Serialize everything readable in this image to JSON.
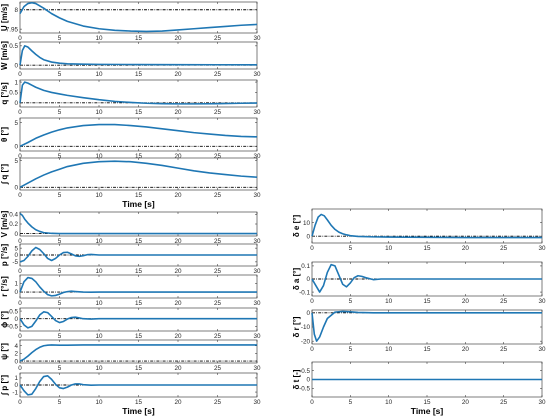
{
  "chart_data": [
    {
      "id": "U",
      "type": "line",
      "ylabel": "U [m/s]",
      "xlim": [
        0,
        30
      ],
      "ylim": [
        7.94,
        8.02
      ],
      "yticks": [
        7.95,
        8
      ],
      "xticks": [
        0,
        5,
        10,
        15,
        20,
        25,
        30
      ],
      "reference": 8.0,
      "series": [
        {
          "color": "#1f77b4",
          "x": [
            0,
            0.5,
            1,
            1.5,
            2,
            3,
            4,
            5,
            6,
            8,
            10,
            12,
            14,
            16,
            18,
            20,
            22,
            24,
            26,
            28,
            30
          ],
          "y": [
            7.99,
            8.008,
            8.016,
            8.018,
            8.016,
            8.004,
            7.99,
            7.979,
            7.97,
            7.958,
            7.951,
            7.947,
            7.945,
            7.944,
            7.945,
            7.948,
            7.951,
            7.954,
            7.957,
            7.96,
            7.962
          ]
        }
      ]
    },
    {
      "id": "W",
      "type": "line",
      "ylabel": "W [m/s]",
      "xlim": [
        0,
        30
      ],
      "ylim": [
        -0.1,
        0.6
      ],
      "yticks": [
        0,
        0.5
      ],
      "xticks": [
        0,
        5,
        10,
        15,
        20,
        25,
        30
      ],
      "reference": 0,
      "series": [
        {
          "color": "#1f77b4",
          "x": [
            0,
            0.3,
            0.6,
            1,
            1.5,
            2,
            2.5,
            3,
            4,
            5,
            6,
            8,
            10,
            15,
            20,
            25,
            30
          ],
          "y": [
            0,
            0.38,
            0.5,
            0.47,
            0.37,
            0.28,
            0.2,
            0.14,
            0.08,
            0.05,
            0.035,
            0.025,
            0.02,
            0.015,
            0.012,
            0.01,
            0.008
          ]
        }
      ]
    },
    {
      "id": "q",
      "type": "line",
      "ylabel": "q [°/s]",
      "xlim": [
        0,
        30
      ],
      "ylim": [
        -0.2,
        1.1
      ],
      "yticks": [
        0,
        0.5,
        1
      ],
      "xticks": [
        0,
        5,
        10,
        15,
        20,
        25,
        30
      ],
      "reference": 0,
      "series": [
        {
          "color": "#1f77b4",
          "x": [
            0,
            0.3,
            0.6,
            1,
            1.5,
            2,
            3,
            4,
            5,
            6,
            8,
            10,
            12,
            14,
            16,
            18,
            20,
            22,
            25,
            28,
            30
          ],
          "y": [
            0,
            0.85,
            1.0,
            0.95,
            0.85,
            0.75,
            0.6,
            0.5,
            0.43,
            0.36,
            0.25,
            0.15,
            0.07,
            0.02,
            -0.02,
            -0.04,
            -0.05,
            -0.05,
            -0.04,
            -0.02,
            -0.01
          ]
        }
      ]
    },
    {
      "id": "theta",
      "type": "line",
      "ylabel": "θ [°]",
      "xlim": [
        0,
        30
      ],
      "ylim": [
        -1,
        6
      ],
      "yticks": [
        0,
        5
      ],
      "xticks": [
        0,
        5,
        10,
        15,
        20,
        25,
        30
      ],
      "reference": 0,
      "series": [
        {
          "color": "#1f77b4",
          "x": [
            0,
            1,
            2,
            3,
            4,
            5,
            6,
            8,
            10,
            12,
            14,
            16,
            18,
            20,
            22,
            24,
            26,
            28,
            30
          ],
          "y": [
            0,
            0.8,
            1.7,
            2.4,
            3.0,
            3.5,
            3.9,
            4.4,
            4.6,
            4.6,
            4.4,
            4.1,
            3.7,
            3.3,
            2.9,
            2.6,
            2.3,
            2.1,
            2.0
          ]
        }
      ]
    },
    {
      "id": "intq",
      "type": "line",
      "ylabel": "∫ q [°]",
      "xlim": [
        0,
        30
      ],
      "ylim": [
        -0.5,
        5.5
      ],
      "yticks": [
        0,
        5
      ],
      "xticks": [
        0,
        5,
        10,
        15,
        20,
        25,
        30
      ],
      "reference": 0,
      "series": [
        {
          "color": "#1f77b4",
          "x": [
            0,
            1,
            2,
            3,
            4,
            5,
            6,
            8,
            10,
            12,
            14,
            16,
            18,
            20,
            22,
            24,
            26,
            28,
            30
          ],
          "y": [
            0,
            0.8,
            1.6,
            2.3,
            2.9,
            3.4,
            3.9,
            4.5,
            4.8,
            4.9,
            4.8,
            4.5,
            4.1,
            3.6,
            3.1,
            2.7,
            2.4,
            2.1,
            1.9
          ]
        }
      ],
      "xlabel": "Time [s]"
    },
    {
      "id": "V",
      "type": "line",
      "ylabel": "V [m/s]",
      "xlim": [
        0,
        30
      ],
      "ylim": [
        -0.05,
        0.45
      ],
      "yticks": [
        0,
        0.2,
        0.4
      ],
      "xticks": [
        0,
        5,
        10,
        15,
        20,
        25,
        30
      ],
      "reference": 0,
      "series": [
        {
          "color": "#1f77b4",
          "x": [
            0,
            0.3,
            0.6,
            1,
            1.5,
            2,
            2.5,
            3,
            4,
            5,
            6,
            8,
            10,
            15,
            20,
            30
          ],
          "y": [
            0.42,
            0.38,
            0.3,
            0.22,
            0.14,
            0.08,
            0.045,
            0.02,
            0.005,
            0,
            0,
            0,
            0,
            0,
            0,
            0
          ]
        }
      ]
    },
    {
      "id": "p",
      "type": "line",
      "ylabel": "p [°/s]",
      "xlim": [
        0,
        30
      ],
      "ylim": [
        -8,
        8
      ],
      "yticks": [
        -5,
        0,
        5
      ],
      "xticks": [
        0,
        5,
        10,
        15,
        20,
        25,
        30
      ],
      "reference": 0,
      "series": [
        {
          "color": "#1f77b4",
          "x": [
            0,
            0.5,
            1,
            1.5,
            2,
            2.5,
            3,
            3.5,
            4,
            4.5,
            5,
            5.5,
            6,
            6.5,
            7,
            7.5,
            8,
            8.5,
            9,
            10,
            12,
            15,
            20,
            30
          ],
          "y": [
            -5,
            -4,
            -1,
            3,
            5.5,
            4,
            1,
            -2.5,
            -4,
            -2.5,
            0,
            1.8,
            2,
            0.8,
            -0.6,
            -1,
            -0.5,
            0.2,
            0.4,
            0,
            0,
            0,
            0,
            0
          ]
        }
      ]
    },
    {
      "id": "r",
      "type": "line",
      "ylabel": "r [°/s]",
      "xlim": [
        0,
        30
      ],
      "ylim": [
        -0.7,
        2.0
      ],
      "yticks": [
        0,
        1
      ],
      "xticks": [
        0,
        5,
        10,
        15,
        20,
        25,
        30
      ],
      "reference": 0,
      "series": [
        {
          "color": "#1f77b4",
          "x": [
            0,
            0.5,
            1,
            1.5,
            2,
            2.5,
            3,
            3.5,
            4,
            4.5,
            5,
            5.5,
            6,
            6.5,
            7,
            8,
            9,
            10,
            15,
            30
          ],
          "y": [
            0,
            1.2,
            1.7,
            1.6,
            1.2,
            0.6,
            0.1,
            -0.3,
            -0.45,
            -0.4,
            -0.25,
            -0.05,
            0.05,
            0.1,
            0.06,
            0,
            -0.02,
            0,
            0,
            0
          ]
        }
      ]
    },
    {
      "id": "phi",
      "type": "line",
      "ylabel": "ϕ [°]",
      "xlim": [
        0,
        30
      ],
      "ylim": [
        -0.8,
        0.7
      ],
      "yticks": [
        -0.5,
        0,
        0.5
      ],
      "xticks": [
        0,
        5,
        10,
        15,
        20,
        25,
        30
      ],
      "reference": 0,
      "series": [
        {
          "color": "#1f77b4",
          "x": [
            0,
            0.5,
            1,
            1.5,
            2,
            2.5,
            3,
            3.5,
            4,
            4.5,
            5,
            5.5,
            6,
            6.5,
            7,
            7.5,
            8,
            9,
            10,
            12,
            15,
            30
          ],
          "y": [
            0,
            -0.4,
            -0.6,
            -0.5,
            -0.15,
            0.25,
            0.45,
            0.4,
            0.15,
            -0.12,
            -0.25,
            -0.18,
            -0.02,
            0.08,
            0.1,
            0.05,
            0,
            -0.02,
            0,
            0,
            0,
            0
          ]
        }
      ]
    },
    {
      "id": "psi",
      "type": "line",
      "ylabel": "ψ [°]",
      "xlim": [
        0,
        30
      ],
      "ylim": [
        -0.5,
        5.5
      ],
      "yticks": [
        0,
        2,
        4
      ],
      "xticks": [
        0,
        5,
        10,
        15,
        20,
        25,
        30
      ],
      "reference": 0,
      "series": [
        {
          "color": "#1f77b4",
          "x": [
            0,
            0.5,
            1,
            1.5,
            2,
            2.5,
            3,
            3.5,
            4,
            4.5,
            5,
            6,
            7,
            8,
            10,
            15,
            20,
            30
          ],
          "y": [
            0,
            0.5,
            1.3,
            2.2,
            3.0,
            3.6,
            4.0,
            4.15,
            4.2,
            4.18,
            4.15,
            4.15,
            4.18,
            4.2,
            4.2,
            4.2,
            4.2,
            4.2
          ]
        }
      ]
    },
    {
      "id": "intp",
      "type": "line",
      "ylabel": "∫ p [°]",
      "xlim": [
        0,
        30
      ],
      "ylim": [
        -1.7,
        1.7
      ],
      "yticks": [
        -1,
        0,
        1
      ],
      "xticks": [
        0,
        5,
        10,
        15,
        20,
        25,
        30
      ],
      "reference": 0,
      "series": [
        {
          "color": "#1f77b4",
          "x": [
            0,
            0.5,
            1,
            1.5,
            2,
            2.5,
            3,
            3.5,
            4,
            4.5,
            5,
            5.5,
            6,
            6.5,
            7,
            7.5,
            8,
            9,
            10,
            12,
            15,
            30
          ],
          "y": [
            0,
            -0.8,
            -1.4,
            -1.3,
            -0.5,
            0.5,
            1.2,
            1.3,
            0.8,
            0.1,
            -0.4,
            -0.5,
            -0.3,
            0,
            0.15,
            0.15,
            0.05,
            -0.02,
            0,
            0,
            0,
            0
          ]
        }
      ],
      "xlabel": "Time [s]"
    },
    {
      "id": "de",
      "type": "line",
      "ylabel": "δ e [°]",
      "xlim": [
        0,
        30
      ],
      "ylim": [
        -5,
        20
      ],
      "yticks": [
        0,
        10
      ],
      "xticks": [
        0,
        5,
        10,
        15,
        20,
        25,
        30
      ],
      "reference": 0,
      "series": [
        {
          "color": "#1f77b4",
          "x": [
            0,
            0.4,
            0.8,
            1.2,
            1.6,
            2,
            2.5,
            3,
            3.5,
            4,
            4.5,
            5,
            6,
            8,
            10,
            15,
            20,
            25,
            30
          ],
          "y": [
            0,
            8,
            14,
            16,
            15,
            12,
            8,
            5,
            3,
            1.8,
            1,
            0.4,
            -0.2,
            -0.5,
            -0.6,
            -0.8,
            -1,
            -1,
            -1
          ]
        }
      ]
    },
    {
      "id": "da",
      "type": "line",
      "ylabel": "δ a [°]",
      "xlim": [
        0,
        30
      ],
      "ylim": [
        -0.13,
        0.13
      ],
      "yticks": [
        -0.1,
        0,
        0.1
      ],
      "xticks": [
        0,
        5,
        10,
        15,
        20,
        25,
        30
      ],
      "reference": 0,
      "series": [
        {
          "color": "#1f77b4",
          "x": [
            0,
            0.5,
            1,
            1.5,
            2,
            2.5,
            3,
            3.5,
            4,
            4.5,
            5,
            5.5,
            6,
            6.5,
            7,
            8,
            9,
            10,
            15,
            30
          ],
          "y": [
            0,
            -0.05,
            -0.1,
            -0.05,
            0.05,
            0.11,
            0.1,
            0.03,
            -0.04,
            -0.06,
            -0.03,
            0.01,
            0.025,
            0.02,
            0.01,
            -0.005,
            0,
            0,
            0,
            0
          ]
        }
      ]
    },
    {
      "id": "dr",
      "type": "line",
      "ylabel": "δ r [°]",
      "xlim": [
        0,
        30
      ],
      "ylim": [
        -22,
        2
      ],
      "yticks": [
        -20,
        -10,
        0
      ],
      "xticks": [
        0,
        5,
        10,
        15,
        20,
        25,
        30
      ],
      "reference": 0,
      "series": [
        {
          "color": "#1f77b4",
          "x": [
            0,
            0.3,
            0.6,
            1,
            1.5,
            2,
            3,
            4,
            5,
            6,
            8,
            10,
            15,
            30
          ],
          "y": [
            0,
            -15,
            -20,
            -17,
            -10,
            -4,
            0.5,
            1,
            0.7,
            0.3,
            0,
            0,
            0,
            0
          ]
        }
      ]
    },
    {
      "id": "dt",
      "type": "line",
      "ylabel": "δ t [-]",
      "xlim": [
        0,
        30
      ],
      "ylim": [
        -1,
        1
      ],
      "yticks": [
        -0.5,
        0,
        0.5
      ],
      "xticks": [
        0,
        5,
        10,
        15,
        20,
        25,
        30
      ],
      "reference": 0,
      "series": [
        {
          "color": "#1f77b4",
          "x": [
            0,
            30
          ],
          "y": [
            0,
            0
          ]
        }
      ],
      "xlabel": "Time [s]"
    }
  ]
}
